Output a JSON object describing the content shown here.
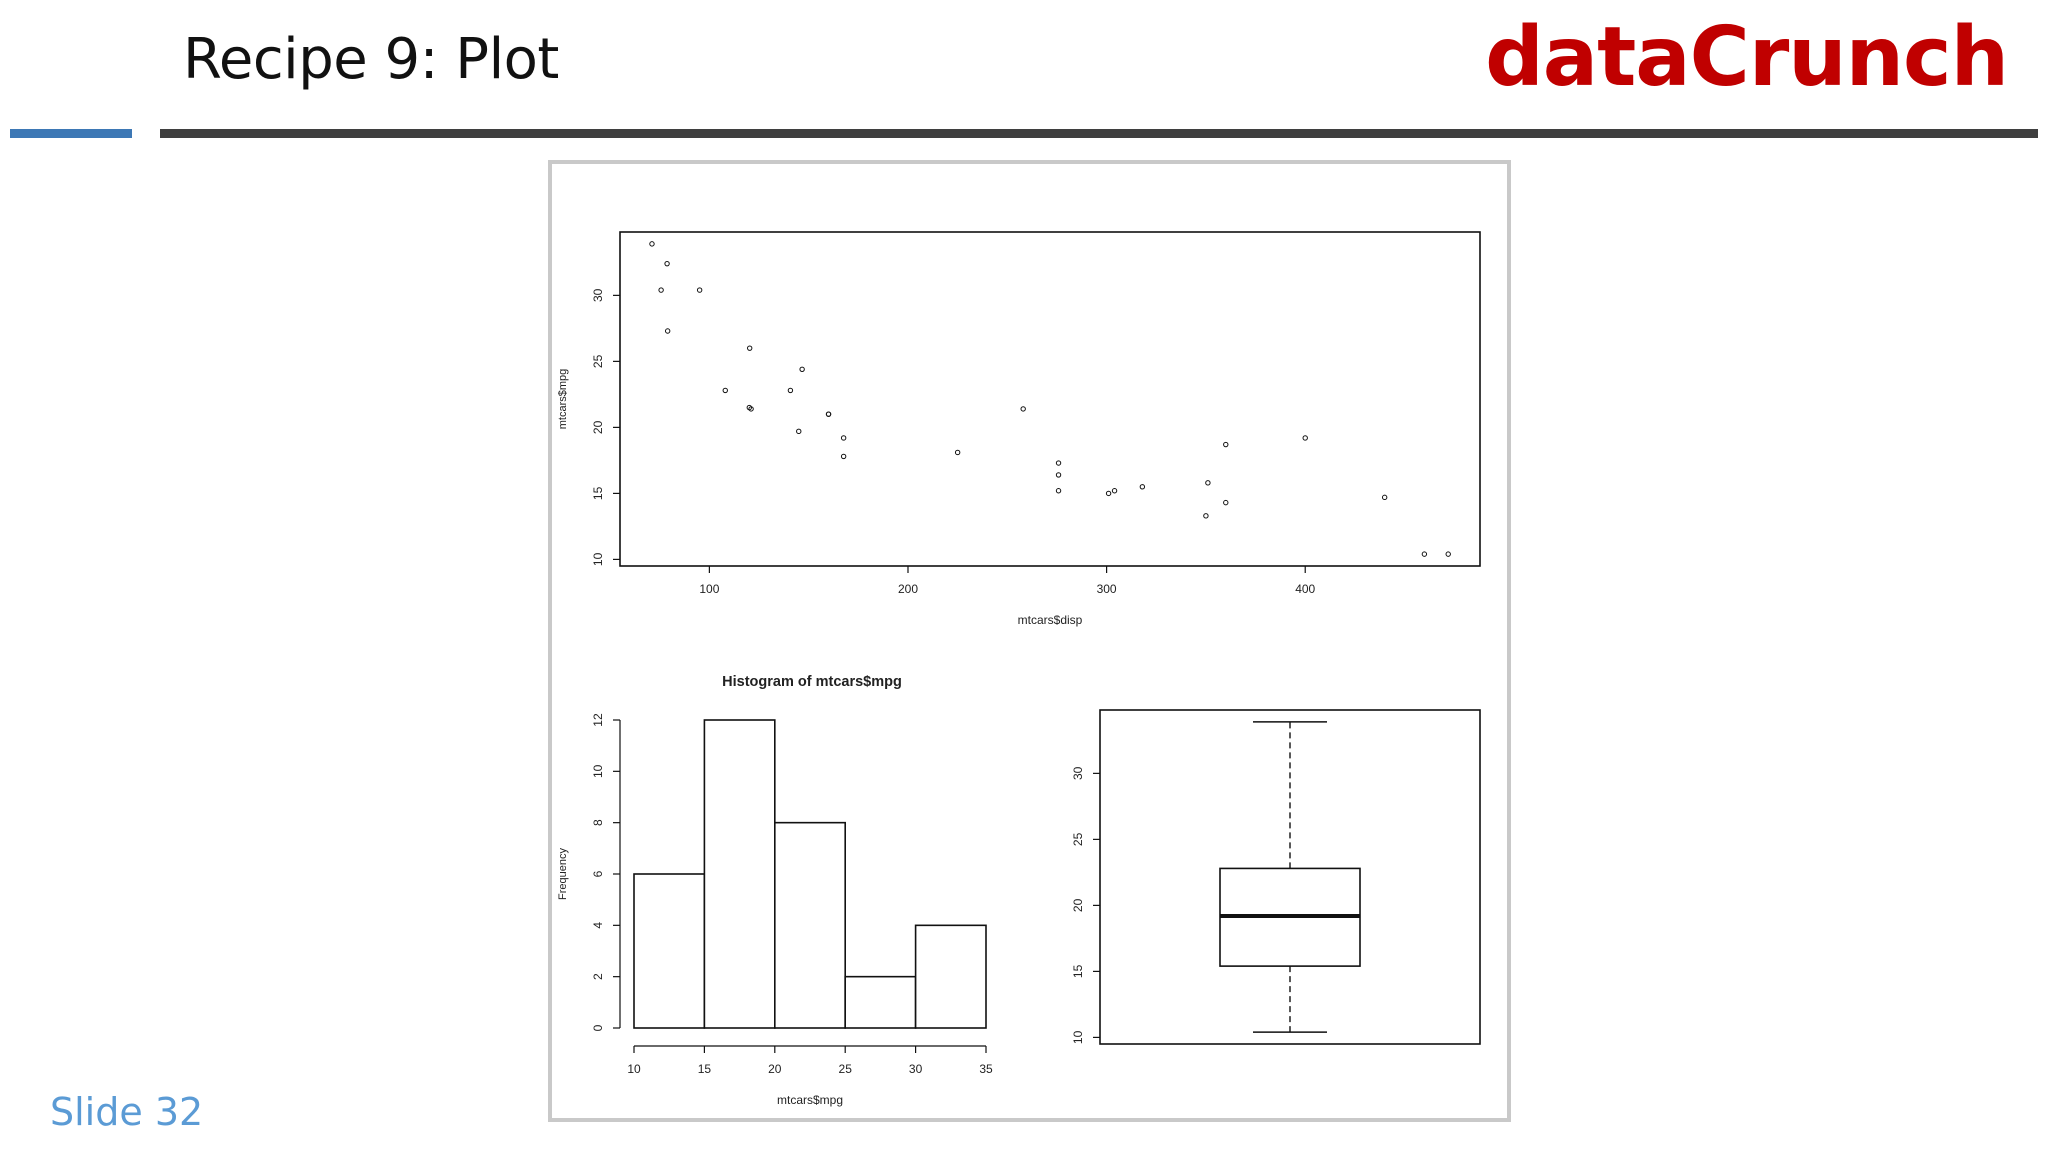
{
  "slide": {
    "title": "Recipe 9: Plot",
    "brand": "dataCrunch",
    "slide_number": "Slide 32",
    "colors": {
      "brand": "#c00000",
      "accent_rule": "#3d78b5",
      "main_rule": "#3f3f3f",
      "slide_number": "#5b9bd5"
    }
  },
  "chart_data": [
    {
      "type": "scatter",
      "title": "",
      "xlabel": "mtcars$disp",
      "ylabel": "mtcars$mpg",
      "xticks": [
        100,
        200,
        300,
        400
      ],
      "yticks": [
        10,
        15,
        20,
        25,
        30
      ],
      "xlim": [
        55,
        488
      ],
      "ylim": [
        9.5,
        34.8
      ],
      "points": [
        {
          "x": 71.1,
          "y": 33.9
        },
        {
          "x": 75.7,
          "y": 30.4
        },
        {
          "x": 78.7,
          "y": 32.4
        },
        {
          "x": 79.0,
          "y": 27.3
        },
        {
          "x": 95.1,
          "y": 30.4
        },
        {
          "x": 108.0,
          "y": 22.8
        },
        {
          "x": 120.1,
          "y": 21.5
        },
        {
          "x": 120.3,
          "y": 26.0
        },
        {
          "x": 121.0,
          "y": 21.4
        },
        {
          "x": 140.8,
          "y": 22.8
        },
        {
          "x": 145.0,
          "y": 19.7
        },
        {
          "x": 146.7,
          "y": 24.4
        },
        {
          "x": 160.0,
          "y": 21.0
        },
        {
          "x": 160.0,
          "y": 21.0
        },
        {
          "x": 167.6,
          "y": 19.2
        },
        {
          "x": 167.6,
          "y": 17.8
        },
        {
          "x": 225.0,
          "y": 18.1
        },
        {
          "x": 258.0,
          "y": 21.4
        },
        {
          "x": 275.8,
          "y": 16.4
        },
        {
          "x": 275.8,
          "y": 17.3
        },
        {
          "x": 275.8,
          "y": 15.2
        },
        {
          "x": 301.0,
          "y": 15.0
        },
        {
          "x": 304.0,
          "y": 15.2
        },
        {
          "x": 318.0,
          "y": 15.5
        },
        {
          "x": 350.0,
          "y": 13.3
        },
        {
          "x": 351.0,
          "y": 15.8
        },
        {
          "x": 360.0,
          "y": 14.3
        },
        {
          "x": 360.0,
          "y": 18.7
        },
        {
          "x": 400.0,
          "y": 19.2
        },
        {
          "x": 440.0,
          "y": 14.7
        },
        {
          "x": 460.0,
          "y": 10.4
        },
        {
          "x": 472.0,
          "y": 10.4
        }
      ]
    },
    {
      "type": "bar",
      "title": "Histogram of mtcars$mpg",
      "xlabel": "mtcars$mpg",
      "ylabel": "Frequency",
      "bins": [
        {
          "from": 10,
          "to": 15,
          "count": 6
        },
        {
          "from": 15,
          "to": 20,
          "count": 12
        },
        {
          "from": 20,
          "to": 25,
          "count": 8
        },
        {
          "from": 25,
          "to": 30,
          "count": 2
        },
        {
          "from": 30,
          "to": 35,
          "count": 4
        }
      ],
      "xticks": [
        10,
        15,
        20,
        25,
        30,
        35
      ],
      "yticks": [
        0,
        2,
        4,
        6,
        8,
        10,
        12
      ],
      "xlim": [
        10,
        35
      ],
      "ylim": [
        0,
        12
      ]
    },
    {
      "type": "boxplot",
      "title": "",
      "yticks": [
        10,
        15,
        20,
        25,
        30
      ],
      "ylim": [
        9.5,
        34.8
      ],
      "min": 10.4,
      "q1": 15.4,
      "median": 19.2,
      "q3": 22.8,
      "max": 33.9
    }
  ]
}
